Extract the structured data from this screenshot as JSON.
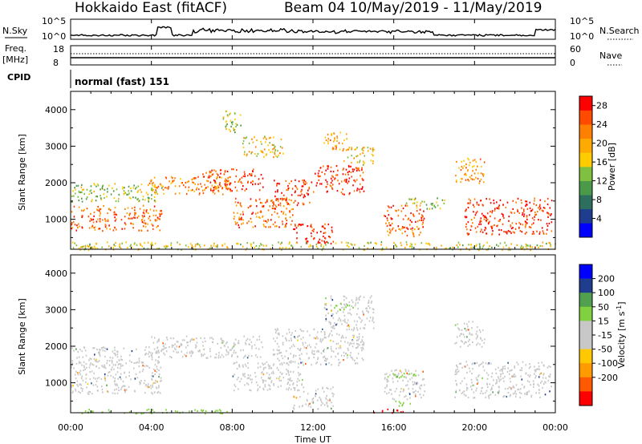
{
  "header": {
    "station": "Hokkaido East (fitACF)",
    "beam_date": "Beam 04  10/May/2019 - 11/May/2019"
  },
  "top_panels": {
    "nsky_label": "N.Sky",
    "nsearch_label": "N.Search",
    "nsky_ticks": [
      "10^5",
      "10^0"
    ],
    "nsearch_ticks": [
      "10^5",
      "10^0"
    ],
    "freq_label": "Freq.",
    "freq_unit": "[MHz]",
    "freq_ticks": [
      "18",
      "8"
    ],
    "nave_label": "Nave",
    "nave_ticks": [
      "60",
      "0"
    ],
    "cpid_label": "CPID",
    "cpid_value": "normal (fast) 151"
  },
  "colors": {
    "power_scale": [
      "#0000ff",
      "#1e3d8f",
      "#2e6e5e",
      "#4a9a4a",
      "#80c040",
      "#ffcc00",
      "#ffaa00",
      "#ff8000",
      "#ff4a00",
      "#ff0000"
    ],
    "velocity_scale": [
      "#ff0000",
      "#ff5a00",
      "#ff9a00",
      "#ffc800",
      "#c8c8c8",
      "#c8c8c8",
      "#80d040",
      "#50a050",
      "#2a6090",
      "#1e3d8f",
      "#0000ff"
    ],
    "ground_scatter": "#c8c8c8"
  },
  "chart_data": [
    {
      "type": "heatmap",
      "parameter": "Power",
      "ylabel": "Slant Range [km]",
      "xlabel": "Time UT",
      "xlim": [
        "00:00",
        "00:00"
      ],
      "x_ticks": [
        "00:00",
        "04:00",
        "08:00",
        "12:00",
        "16:00",
        "20:00",
        "00:00"
      ],
      "ylim": [
        180,
        4500
      ],
      "y_ticks": [
        1000,
        2000,
        3000,
        4000
      ],
      "colorbar_label": "Power [dB]",
      "colorbar_ticks": [
        4,
        8,
        12,
        16,
        20,
        24,
        28
      ],
      "colorbar_range": [
        0,
        30
      ],
      "regions": [
        {
          "t0": 0.0,
          "t1": 4.5,
          "r0": 700,
          "r1": 1400,
          "level": 24
        },
        {
          "t0": 0.0,
          "t1": 4.5,
          "r0": 1500,
          "r1": 2000,
          "level": 14
        },
        {
          "t0": 3.8,
          "t1": 8.0,
          "r0": 1700,
          "r1": 2200,
          "level": 22
        },
        {
          "t0": 6.5,
          "t1": 9.5,
          "r0": 1800,
          "r1": 2400,
          "level": 26
        },
        {
          "t0": 8.0,
          "t1": 11.0,
          "r0": 800,
          "r1": 1600,
          "level": 24
        },
        {
          "t0": 10.0,
          "t1": 12.0,
          "r0": 1400,
          "r1": 2100,
          "level": 26
        },
        {
          "t0": 11.0,
          "t1": 13.0,
          "r0": 350,
          "r1": 900,
          "level": 28
        },
        {
          "t0": 12.0,
          "t1": 14.5,
          "r0": 1700,
          "r1": 2500,
          "level": 27
        },
        {
          "t0": 13.5,
          "t1": 15.0,
          "r0": 2500,
          "r1": 3000,
          "level": 18
        },
        {
          "t0": 12.5,
          "t1": 13.8,
          "r0": 2900,
          "r1": 3400,
          "level": 20
        },
        {
          "t0": 8.5,
          "t1": 10.5,
          "r0": 2700,
          "r1": 3300,
          "level": 18
        },
        {
          "t0": 7.5,
          "t1": 8.5,
          "r0": 3400,
          "r1": 4000,
          "level": 14
        },
        {
          "t0": 15.5,
          "t1": 17.5,
          "r0": 550,
          "r1": 1400,
          "level": 24
        },
        {
          "t0": 16.5,
          "t1": 18.5,
          "r0": 1300,
          "r1": 1600,
          "level": 14
        },
        {
          "t0": 19.0,
          "t1": 20.5,
          "r0": 2000,
          "r1": 2700,
          "level": 20
        },
        {
          "t0": 19.5,
          "t1": 23.8,
          "r0": 600,
          "r1": 1600,
          "level": 27
        },
        {
          "t0": 0.0,
          "t1": 24.0,
          "r0": 180,
          "r1": 400,
          "level": 16
        }
      ]
    },
    {
      "type": "heatmap",
      "parameter": "Velocity",
      "ylabel": "Slant Range [km]",
      "xlabel": "Time UT",
      "xlim": [
        "00:00",
        "00:00"
      ],
      "x_ticks": [
        "00:00",
        "04:00",
        "08:00",
        "12:00",
        "16:00",
        "20:00",
        "00:00"
      ],
      "ylim": [
        180,
        4500
      ],
      "y_ticks": [
        1000,
        2000,
        3000,
        4000
      ],
      "colorbar_label": "Velocity [m s-1]",
      "colorbar_ticks": [
        200,
        100,
        50,
        15,
        -15,
        -50,
        -100,
        -200
      ],
      "regions": [
        {
          "t0": 0.0,
          "t1": 4.5,
          "r0": 700,
          "r1": 1500,
          "v": 0
        },
        {
          "t0": 0.0,
          "t1": 4.5,
          "r0": 1500,
          "r1": 2000,
          "v": 0
        },
        {
          "t0": 3.8,
          "t1": 9.5,
          "r0": 1700,
          "r1": 2300,
          "v": 0
        },
        {
          "t0": 8.0,
          "t1": 11.5,
          "r0": 800,
          "r1": 1600,
          "v": 0
        },
        {
          "t0": 10.0,
          "t1": 14.5,
          "r0": 1500,
          "r1": 2500,
          "v": 0
        },
        {
          "t0": 11.0,
          "t1": 13.0,
          "r0": 300,
          "r1": 900,
          "v": 0
        },
        {
          "t0": 12.5,
          "t1": 15.0,
          "r0": 2500,
          "r1": 3400,
          "v": 0
        },
        {
          "t0": 15.5,
          "t1": 17.5,
          "r0": 550,
          "r1": 1400,
          "v": 0
        },
        {
          "t0": 19.0,
          "t1": 23.8,
          "r0": 600,
          "r1": 1600,
          "v": 0
        },
        {
          "t0": 19.0,
          "t1": 20.5,
          "r0": 2000,
          "r1": 2700,
          "v": 0
        },
        {
          "t0": 13.0,
          "t1": 14.0,
          "r0": 3000,
          "r1": 3200,
          "v": 40
        },
        {
          "t0": 15.5,
          "t1": 17.0,
          "r0": 1150,
          "r1": 1300,
          "v": 40
        },
        {
          "t0": 16.0,
          "t1": 17.0,
          "r0": 380,
          "r1": 520,
          "v": 40
        },
        {
          "t0": 15.0,
          "t1": 16.5,
          "r0": 180,
          "r1": 300,
          "v": -200
        },
        {
          "t0": 0.5,
          "t1": 8.0,
          "r0": 180,
          "r1": 300,
          "v": 30
        }
      ]
    }
  ]
}
